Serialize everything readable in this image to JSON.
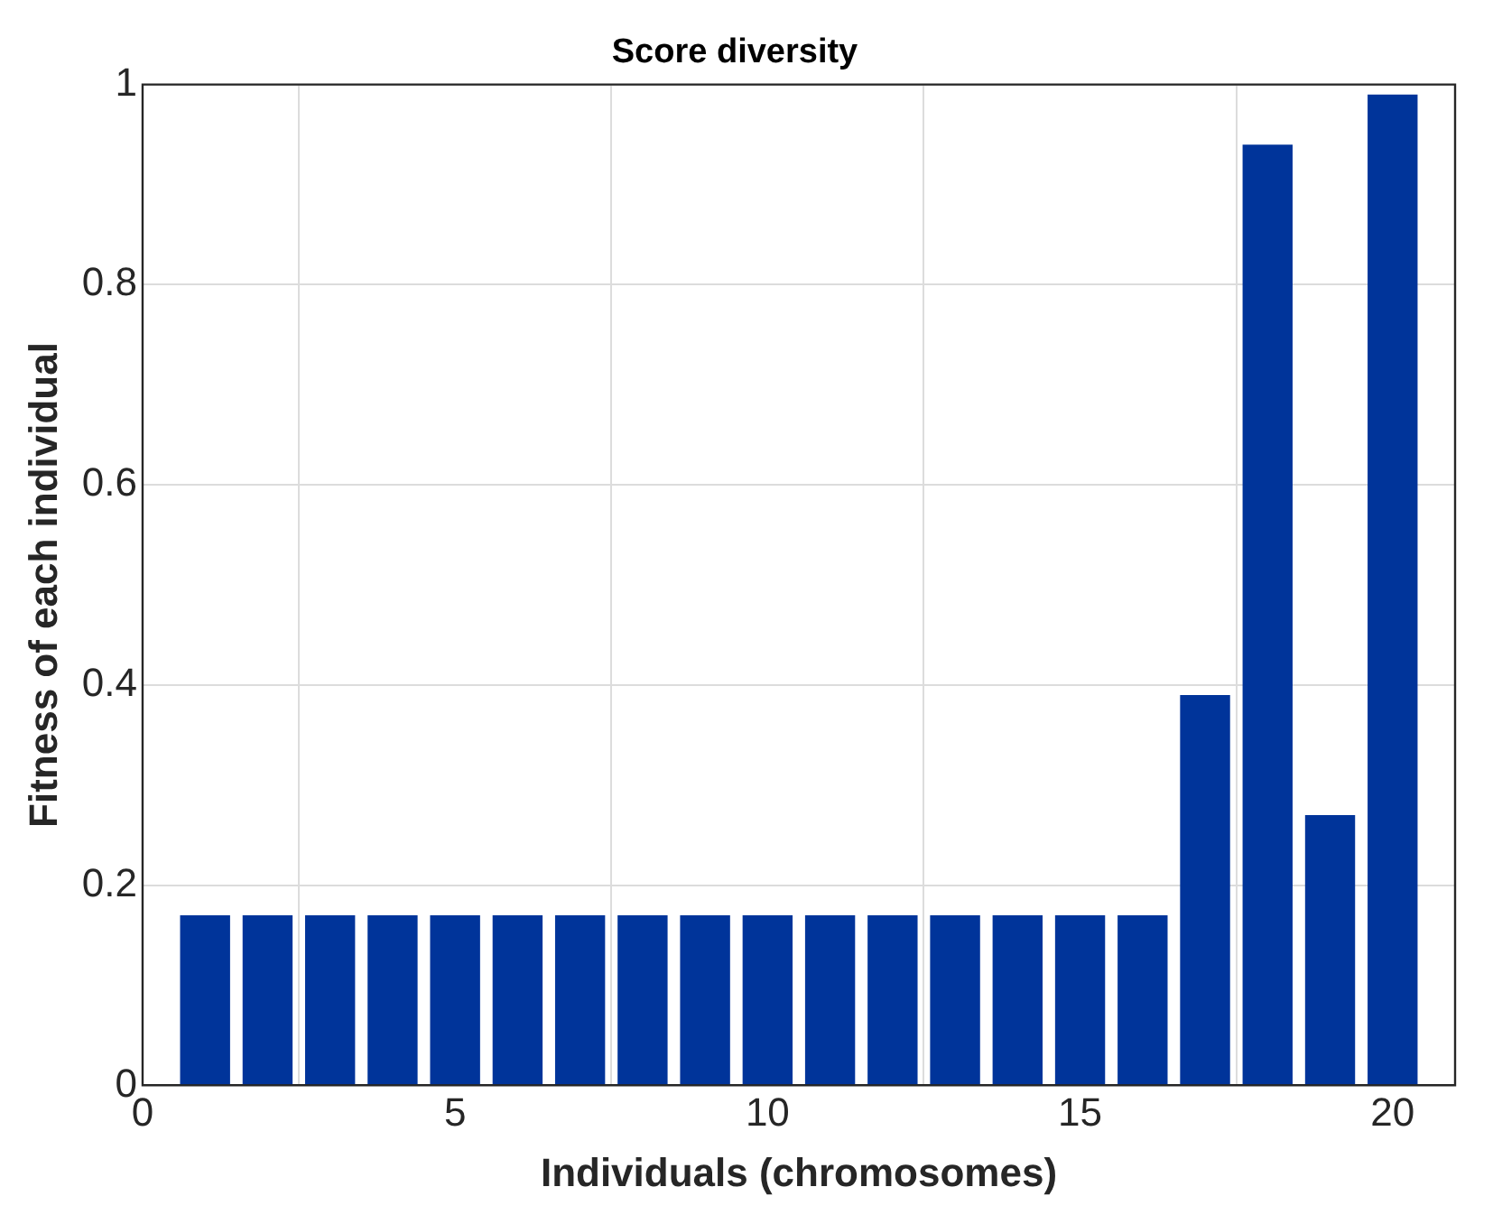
{
  "chart_data": {
    "type": "bar",
    "title": "Score diversity",
    "xlabel": "Individuals (chromosomes)",
    "ylabel": "Fitness of each individual",
    "x": [
      1,
      2,
      3,
      4,
      5,
      6,
      7,
      8,
      9,
      10,
      11,
      12,
      13,
      14,
      15,
      16,
      17,
      18,
      19,
      20
    ],
    "values": [
      0.17,
      0.17,
      0.17,
      0.17,
      0.17,
      0.17,
      0.17,
      0.17,
      0.17,
      0.17,
      0.17,
      0.17,
      0.17,
      0.17,
      0.17,
      0.17,
      0.39,
      0.94,
      0.27,
      0.99
    ],
    "color": "#00349a",
    "xlim": [
      0,
      21
    ],
    "ylim": [
      0,
      1
    ],
    "xticks": [
      0,
      5,
      10,
      15,
      20
    ],
    "yticks": [
      0,
      0.2,
      0.4,
      0.6,
      0.8,
      1
    ],
    "grid": true,
    "legend": false
  }
}
